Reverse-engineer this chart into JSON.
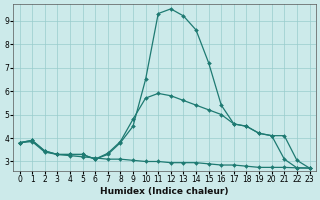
{
  "xlabel": "Humidex (Indice chaleur)",
  "bg_color": "#cceaea",
  "grid_color": "#99cccc",
  "line_color": "#1e7a72",
  "xlim": [
    -0.5,
    23.5
  ],
  "ylim": [
    2.6,
    9.7
  ],
  "yticks": [
    3,
    4,
    5,
    6,
    7,
    8,
    9
  ],
  "xticks": [
    0,
    1,
    2,
    3,
    4,
    5,
    6,
    7,
    8,
    9,
    10,
    11,
    12,
    13,
    14,
    15,
    16,
    17,
    18,
    19,
    20,
    21,
    22,
    23
  ],
  "series_min_x": [
    0,
    1,
    2,
    3,
    4,
    5,
    6,
    7,
    8,
    9,
    10,
    11,
    12,
    13,
    14,
    15,
    16,
    17,
    18,
    19,
    20,
    21,
    22,
    23
  ],
  "series_min_y": [
    3.8,
    3.85,
    3.4,
    3.3,
    3.25,
    3.2,
    3.15,
    3.1,
    3.1,
    3.05,
    3.0,
    3.0,
    2.95,
    2.95,
    2.95,
    2.9,
    2.85,
    2.85,
    2.8,
    2.75,
    2.75,
    2.75,
    2.73,
    2.72
  ],
  "series_max_x": [
    0,
    1,
    2,
    3,
    4,
    5,
    6,
    7,
    8,
    9,
    10,
    11,
    12,
    13,
    14,
    15,
    16,
    17,
    18,
    19,
    20,
    21,
    22,
    23
  ],
  "series_max_y": [
    3.8,
    3.9,
    3.45,
    3.3,
    3.3,
    3.3,
    3.1,
    3.3,
    3.8,
    4.5,
    6.5,
    9.3,
    9.5,
    9.2,
    8.6,
    7.2,
    5.4,
    4.6,
    4.5,
    4.2,
    4.1,
    3.1,
    2.73,
    2.72
  ],
  "series_avg_x": [
    0,
    1,
    2,
    3,
    4,
    5,
    6,
    7,
    8,
    9,
    10,
    11,
    12,
    13,
    14,
    15,
    16,
    17,
    18,
    19,
    20,
    21,
    22,
    23
  ],
  "series_avg_y": [
    3.8,
    3.9,
    3.45,
    3.3,
    3.3,
    3.3,
    3.1,
    3.35,
    3.85,
    4.8,
    5.7,
    5.9,
    5.8,
    5.6,
    5.4,
    5.2,
    5.0,
    4.6,
    4.5,
    4.2,
    4.1,
    4.1,
    3.05,
    2.72
  ],
  "marker_size": 2.0,
  "line_width": 0.9,
  "tick_fontsize": 5.5,
  "xlabel_fontsize": 6.5
}
